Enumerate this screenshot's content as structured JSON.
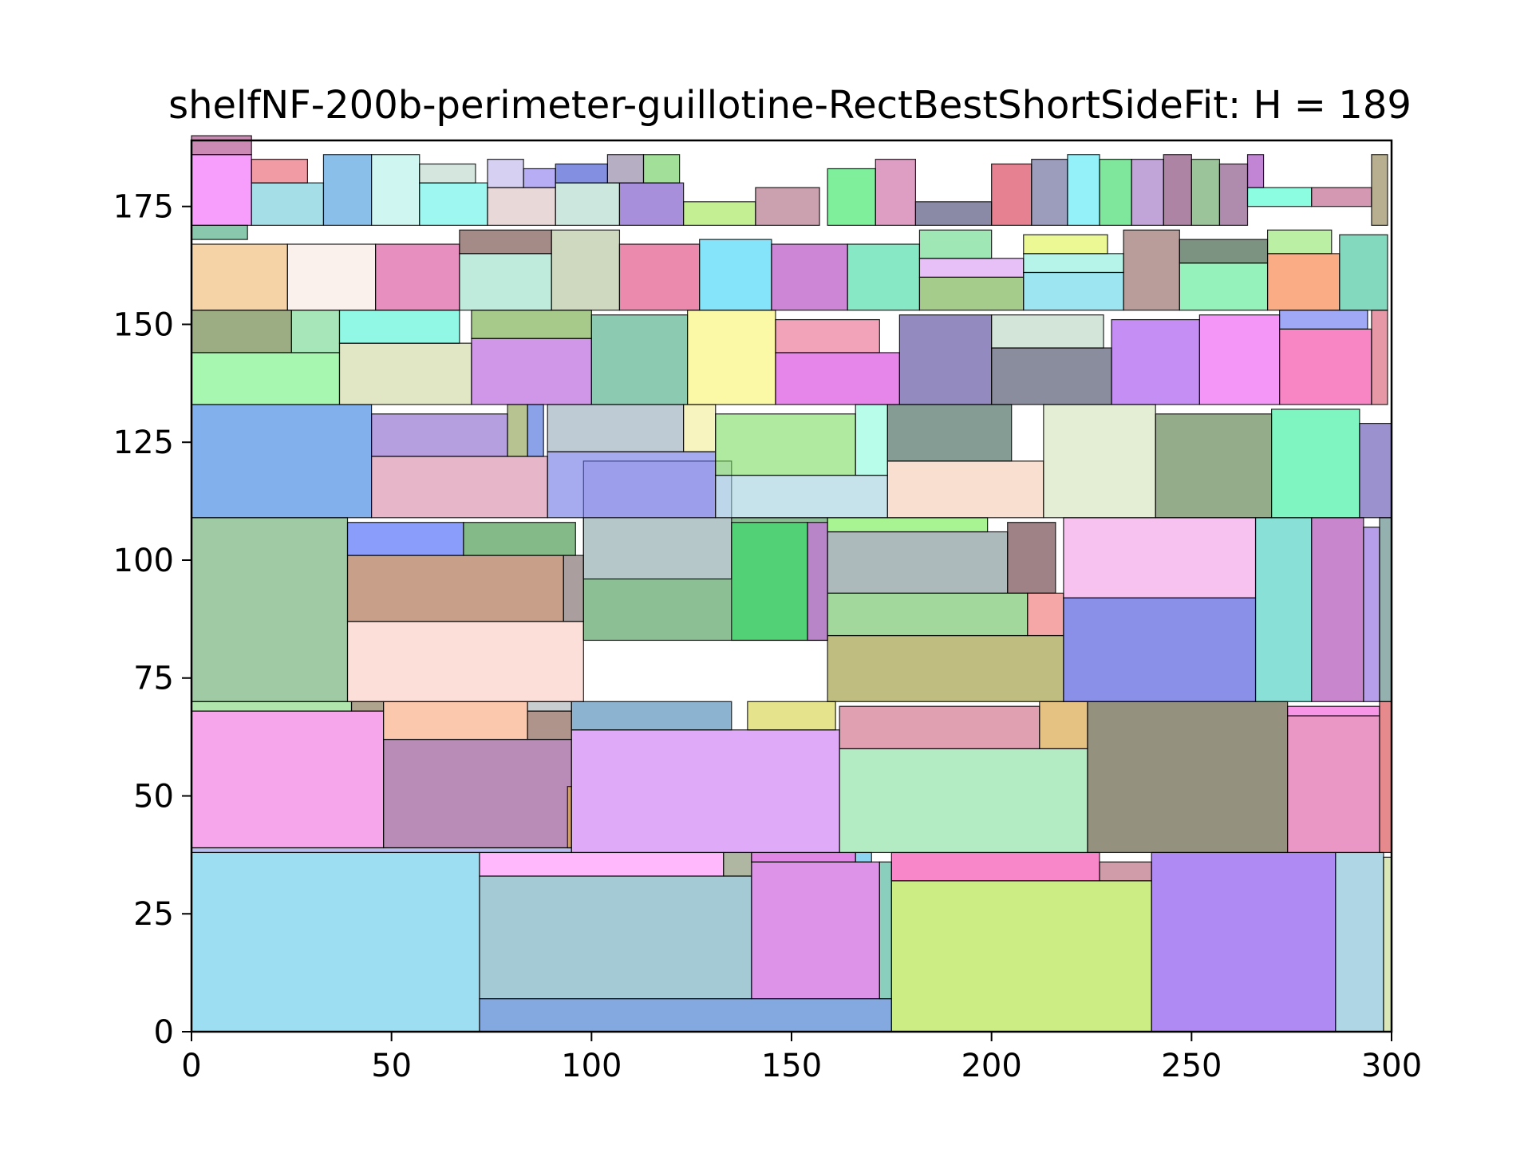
{
  "chart_data": {
    "type": "rectangle-packing",
    "title": "shelfNF-200b-perimeter-guillotine-RectBestShortSideFit: H = 189",
    "xlim": [
      0,
      300
    ],
    "ylim": [
      0,
      189
    ],
    "xticks": [
      "0",
      "50",
      "100",
      "150",
      "200",
      "250",
      "300"
    ],
    "yticks": [
      "0",
      "25",
      "50",
      "75",
      "100",
      "125",
      "150",
      "175"
    ],
    "grid": false,
    "rects": [
      {
        "x": 0,
        "y": 0,
        "w": 72,
        "h": 38,
        "color": "#4ec3e8"
      },
      {
        "x": 72,
        "y": 0,
        "w": 103,
        "h": 7,
        "color": "#1f62c9"
      },
      {
        "x": 72,
        "y": 7,
        "w": 68,
        "h": 26,
        "color": "#5aa1b3"
      },
      {
        "x": 140,
        "y": 7,
        "w": 32,
        "h": 29,
        "color": "#c13ad6"
      },
      {
        "x": 172,
        "y": 7,
        "w": 3,
        "h": 29,
        "color": "#2aa889"
      },
      {
        "x": 72,
        "y": 33,
        "w": 61,
        "h": 5,
        "color": "#ff7df9"
      },
      {
        "x": 133,
        "y": 33,
        "w": 7,
        "h": 5,
        "color": "#6e7a56"
      },
      {
        "x": 140,
        "y": 36,
        "w": 26,
        "h": 2,
        "color": "#c624d1"
      },
      {
        "x": 166,
        "y": 36,
        "w": 4,
        "h": 2,
        "color": "#2eb0e6"
      },
      {
        "x": 175,
        "y": 0,
        "w": 65,
        "h": 32,
        "color": "#a3df1f"
      },
      {
        "x": 175,
        "y": 32,
        "w": 52,
        "h": 6,
        "color": "#f0249a"
      },
      {
        "x": 227,
        "y": 32,
        "w": 13,
        "h": 4,
        "color": "#a94b63"
      },
      {
        "x": 240,
        "y": 0,
        "w": 46,
        "h": 38,
        "color": "#6d2ae8"
      },
      {
        "x": 286,
        "y": 0,
        "w": 12,
        "h": 38,
        "color": "#6eb4cf"
      },
      {
        "x": 298,
        "y": 0,
        "w": 2,
        "h": 37,
        "color": "#b9d57a"
      },
      {
        "x": 0,
        "y": 38,
        "w": 95,
        "h": 1,
        "color": "#7d8be2"
      },
      {
        "x": 0,
        "y": 39,
        "w": 48,
        "h": 29,
        "color": "#ee5cd8"
      },
      {
        "x": 48,
        "y": 39,
        "w": 47,
        "h": 23,
        "color": "#7f2c7c"
      },
      {
        "x": 0,
        "y": 68,
        "w": 40,
        "h": 2,
        "color": "#6fd26c"
      },
      {
        "x": 40,
        "y": 68,
        "w": 8,
        "h": 2,
        "color": "#6d5a32"
      },
      {
        "x": 48,
        "y": 62,
        "w": 36,
        "h": 8,
        "color": "#f79a6a"
      },
      {
        "x": 84,
        "y": 62,
        "w": 11,
        "h": 6,
        "color": "#6c3d2a"
      },
      {
        "x": 84,
        "y": 68,
        "w": 11,
        "h": 2,
        "color": "#9aa6a8"
      },
      {
        "x": 94,
        "y": 39,
        "w": 1,
        "h": 13,
        "color": "#e0ae25"
      },
      {
        "x": 95,
        "y": 38,
        "w": 67,
        "h": 26,
        "color": "#c564f0"
      },
      {
        "x": 95,
        "y": 64,
        "w": 40,
        "h": 6,
        "color": "#2d74a8"
      },
      {
        "x": 139,
        "y": 64,
        "w": 22,
        "h": 6,
        "color": "#cfcd30"
      },
      {
        "x": 162,
        "y": 38,
        "w": 62,
        "h": 22,
        "color": "#74dc92"
      },
      {
        "x": 162,
        "y": 60,
        "w": 50,
        "h": 9,
        "color": "#c65271"
      },
      {
        "x": 212,
        "y": 60,
        "w": 12,
        "h": 10,
        "color": "#cf8f1a"
      },
      {
        "x": 224,
        "y": 38,
        "w": 50,
        "h": 32,
        "color": "#3c3615"
      },
      {
        "x": 274,
        "y": 38,
        "w": 23,
        "h": 29,
        "color": "#db4195"
      },
      {
        "x": 274,
        "y": 67,
        "w": 23,
        "h": 2,
        "color": "#f040d3"
      },
      {
        "x": 297,
        "y": 38,
        "w": 3,
        "h": 32,
        "color": "#d32a32"
      },
      {
        "x": 0,
        "y": 70,
        "w": 39,
        "h": 39,
        "color": "#529e5a"
      },
      {
        "x": 39,
        "y": 70,
        "w": 59,
        "h": 17,
        "color": "#fbc4bb"
      },
      {
        "x": 39,
        "y": 87,
        "w": 54,
        "h": 14,
        "color": "#9a522a"
      },
      {
        "x": 39,
        "y": 101,
        "w": 29,
        "h": 7,
        "color": "#2b4cf7"
      },
      {
        "x": 68,
        "y": 101,
        "w": 28,
        "h": 7,
        "color": "#1f7f27"
      },
      {
        "x": 93,
        "y": 87,
        "w": 5,
        "h": 14,
        "color": "#64514f"
      },
      {
        "x": 98,
        "y": 83,
        "w": 61,
        "h": 26,
        "color": "#2e8c3c"
      },
      {
        "x": 98,
        "y": 96,
        "w": 37,
        "h": 25,
        "color": "#d8ccf5"
      },
      {
        "x": 135,
        "y": 83,
        "w": 19,
        "h": 25,
        "color": "#22df5e"
      },
      {
        "x": 154,
        "y": 83,
        "w": 5,
        "h": 25,
        "color": "#df54f4"
      },
      {
        "x": 159,
        "y": 70,
        "w": 59,
        "h": 14,
        "color": "#8a8618"
      },
      {
        "x": 159,
        "y": 84,
        "w": 50,
        "h": 9,
        "color": "#58b84c"
      },
      {
        "x": 159,
        "y": 93,
        "w": 45,
        "h": 13,
        "color": "#698283"
      },
      {
        "x": 159,
        "y": 106,
        "w": 40,
        "h": 3,
        "color": "#60eb3b"
      },
      {
        "x": 204,
        "y": 93,
        "w": 12,
        "h": 15,
        "color": "#4e1b22"
      },
      {
        "x": 209,
        "y": 84,
        "w": 9,
        "h": 9,
        "color": "#ec5e5e"
      },
      {
        "x": 218,
        "y": 70,
        "w": 48,
        "h": 22,
        "color": "#2935d4"
      },
      {
        "x": 218,
        "y": 92,
        "w": 48,
        "h": 17,
        "color": "#f08fe2"
      },
      {
        "x": 266,
        "y": 70,
        "w": 14,
        "h": 39,
        "color": "#26c6b6"
      },
      {
        "x": 280,
        "y": 70,
        "w": 13,
        "h": 39,
        "color": "#9a22a3"
      },
      {
        "x": 293,
        "y": 70,
        "w": 4,
        "h": 37,
        "color": "#7b4fd8"
      },
      {
        "x": 297,
        "y": 70,
        "w": 3,
        "h": 39,
        "color": "#3d6f6e"
      },
      {
        "x": 0,
        "y": 109,
        "w": 45,
        "h": 24,
        "color": "#1b6fdd"
      },
      {
        "x": 45,
        "y": 109,
        "w": 44,
        "h": 13,
        "color": "#d37a9c"
      },
      {
        "x": 45,
        "y": 122,
        "w": 34,
        "h": 9,
        "color": "#7a50c4"
      },
      {
        "x": 79,
        "y": 122,
        "w": 5,
        "h": 11,
        "color": "#7b9234"
      },
      {
        "x": 84,
        "y": 122,
        "w": 4,
        "h": 11,
        "color": "#2b55d6"
      },
      {
        "x": 89,
        "y": 109,
        "w": 42,
        "h": 14,
        "color": "#5b66e0"
      },
      {
        "x": 89,
        "y": 123,
        "w": 34,
        "h": 10,
        "color": "#8aa0b0"
      },
      {
        "x": 123,
        "y": 123,
        "w": 8,
        "h": 10,
        "color": "#f0eb8a"
      },
      {
        "x": 131,
        "y": 109,
        "w": 43,
        "h": 9,
        "color": "#97ccdc"
      },
      {
        "x": 131,
        "y": 118,
        "w": 35,
        "h": 13,
        "color": "#70d954"
      },
      {
        "x": 166,
        "y": 118,
        "w": 8,
        "h": 15,
        "color": "#7dfcd9"
      },
      {
        "x": 174,
        "y": 109,
        "w": 39,
        "h": 12,
        "color": "#f3c5a8"
      },
      {
        "x": 174,
        "y": 121,
        "w": 31,
        "h": 12,
        "color": "#1f4b3b"
      },
      {
        "x": 213,
        "y": 109,
        "w": 28,
        "h": 24,
        "color": "#cde0b0"
      },
      {
        "x": 241,
        "y": 109,
        "w": 29,
        "h": 22,
        "color": "#3d682a"
      },
      {
        "x": 270,
        "y": 109,
        "w": 22,
        "h": 23,
        "color": "#15ef8f"
      },
      {
        "x": 292,
        "y": 109,
        "w": 8,
        "h": 20,
        "color": "#4b36a8"
      },
      {
        "x": 0,
        "y": 133,
        "w": 37,
        "h": 11,
        "color": "#5ef070"
      },
      {
        "x": 0,
        "y": 144,
        "w": 25,
        "h": 9,
        "color": "#4c6a1e"
      },
      {
        "x": 25,
        "y": 144,
        "w": 12,
        "h": 9,
        "color": "#5fd27e"
      },
      {
        "x": 37,
        "y": 133,
        "w": 33,
        "h": 13,
        "color": "#c9d193"
      },
      {
        "x": 37,
        "y": 146,
        "w": 30,
        "h": 7,
        "color": "#35f3ce"
      },
      {
        "x": 70,
        "y": 133,
        "w": 30,
        "h": 14,
        "color": "#aa3fd5"
      },
      {
        "x": 70,
        "y": 147,
        "w": 30,
        "h": 6,
        "color": "#5e9d28"
      },
      {
        "x": 100,
        "y": 133,
        "w": 24,
        "h": 19,
        "color": "#2e9f73"
      },
      {
        "x": 124,
        "y": 133,
        "w": 22,
        "h": 20,
        "color": "#f7f45c"
      },
      {
        "x": 146,
        "y": 133,
        "w": 31,
        "h": 11,
        "color": "#d423d9"
      },
      {
        "x": 146,
        "y": 144,
        "w": 26,
        "h": 7,
        "color": "#ea577f"
      },
      {
        "x": 177,
        "y": 133,
        "w": 23,
        "h": 19,
        "color": "#3a2b8a"
      },
      {
        "x": 200,
        "y": 133,
        "w": 30,
        "h": 12,
        "color": "#28304d"
      },
      {
        "x": 200,
        "y": 145,
        "w": 28,
        "h": 7,
        "color": "#afcdb8"
      },
      {
        "x": 230,
        "y": 133,
        "w": 22,
        "h": 18,
        "color": "#9532eb"
      },
      {
        "x": 252,
        "y": 133,
        "w": 20,
        "h": 19,
        "color": "#eb3ff1"
      },
      {
        "x": 272,
        "y": 133,
        "w": 23,
        "h": 16,
        "color": "#f22393"
      },
      {
        "x": 272,
        "y": 149,
        "w": 22,
        "h": 4,
        "color": "#5062ec"
      },
      {
        "x": 295,
        "y": 133,
        "w": 4,
        "h": 20,
        "color": "#d2445f"
      },
      {
        "x": 0,
        "y": 153,
        "w": 24,
        "h": 14,
        "color": "#efaf5c"
      },
      {
        "x": 24,
        "y": 153,
        "w": 22,
        "h": 14,
        "color": "#f5e3dc"
      },
      {
        "x": 46,
        "y": 153,
        "w": 21,
        "h": 14,
        "color": "#d3358c"
      },
      {
        "x": 67,
        "y": 153,
        "w": 23,
        "h": 12,
        "color": "#8bdbc1"
      },
      {
        "x": 67,
        "y": 165,
        "w": 23,
        "h": 5,
        "color": "#5a2c26"
      },
      {
        "x": 90,
        "y": 153,
        "w": 17,
        "h": 17,
        "color": "#a5b98a"
      },
      {
        "x": 107,
        "y": 153,
        "w": 20,
        "h": 14,
        "color": "#dc2a6b"
      },
      {
        "x": 127,
        "y": 153,
        "w": 18,
        "h": 15,
        "color": "#21cdf6"
      },
      {
        "x": 145,
        "y": 153,
        "w": 19,
        "h": 14,
        "color": "#a323b2"
      },
      {
        "x": 164,
        "y": 153,
        "w": 18,
        "h": 14,
        "color": "#25d596"
      },
      {
        "x": 182,
        "y": 153,
        "w": 26,
        "h": 7,
        "color": "#5ba32c"
      },
      {
        "x": 182,
        "y": 160,
        "w": 26,
        "h": 4,
        "color": "#d68cf2"
      },
      {
        "x": 182,
        "y": 164,
        "w": 18,
        "h": 6,
        "color": "#50d57a"
      },
      {
        "x": 208,
        "y": 153,
        "w": 25,
        "h": 8,
        "color": "#4acfe6"
      },
      {
        "x": 208,
        "y": 161,
        "w": 25,
        "h": 4,
        "color": "#7ae9d6"
      },
      {
        "x": 208,
        "y": 165,
        "w": 21,
        "h": 4,
        "color": "#dcf23a"
      },
      {
        "x": 233,
        "y": 153,
        "w": 14,
        "h": 17,
        "color": "#7e4c48"
      },
      {
        "x": 247,
        "y": 153,
        "w": 22,
        "h": 10,
        "color": "#3ee884"
      },
      {
        "x": 247,
        "y": 163,
        "w": 22,
        "h": 5,
        "color": "#133a19"
      },
      {
        "x": 269,
        "y": 153,
        "w": 18,
        "h": 12,
        "color": "#f56a1f"
      },
      {
        "x": 269,
        "y": 165,
        "w": 16,
        "h": 5,
        "color": "#83e45a"
      },
      {
        "x": 287,
        "y": 153,
        "w": 12,
        "h": 16,
        "color": "#1cb986"
      },
      {
        "x": 0,
        "y": 171,
        "w": 15,
        "h": 15,
        "color": "#f04cfa"
      },
      {
        "x": 0,
        "y": 186,
        "w": 15,
        "h": 4,
        "color": "#a12a77"
      },
      {
        "x": 15,
        "y": 171,
        "w": 18,
        "h": 9,
        "color": "#5cc2d4"
      },
      {
        "x": 15,
        "y": 180,
        "w": 14,
        "h": 5,
        "color": "#e64a5b"
      },
      {
        "x": 33,
        "y": 171,
        "w": 12,
        "h": 15,
        "color": "#2a8ad8"
      },
      {
        "x": 45,
        "y": 171,
        "w": 12,
        "h": 15,
        "color": "#a9efe6"
      },
      {
        "x": 57,
        "y": 171,
        "w": 17,
        "h": 9,
        "color": "#4ff0e3"
      },
      {
        "x": 57,
        "y": 180,
        "w": 14,
        "h": 4,
        "color": "#b1d2c2"
      },
      {
        "x": 74,
        "y": 171,
        "w": 17,
        "h": 8,
        "color": "#d6b8b8"
      },
      {
        "x": 74,
        "y": 179,
        "w": 9,
        "h": 6,
        "color": "#b5a9e8"
      },
      {
        "x": 83,
        "y": 179,
        "w": 8,
        "h": 4,
        "color": "#7b69ec"
      },
      {
        "x": 91,
        "y": 171,
        "w": 16,
        "h": 9,
        "color": "#a2d4c2"
      },
      {
        "x": 91,
        "y": 180,
        "w": 13,
        "h": 4,
        "color": "#1d34c9"
      },
      {
        "x": 107,
        "y": 171,
        "w": 16,
        "h": 9,
        "color": "#6033bd"
      },
      {
        "x": 104,
        "y": 180,
        "w": 9,
        "h": 6,
        "color": "#7a6c92"
      },
      {
        "x": 113,
        "y": 180,
        "w": 9,
        "h": 6,
        "color": "#55c444"
      },
      {
        "x": 123,
        "y": 171,
        "w": 18,
        "h": 5,
        "color": "#95e23b"
      },
      {
        "x": 141,
        "y": 171,
        "w": 16,
        "h": 8,
        "color": "#a3546d"
      },
      {
        "x": 159,
        "y": 171,
        "w": 12,
        "h": 12,
        "color": "#16e24a"
      },
      {
        "x": 171,
        "y": 171,
        "w": 10,
        "h": 14,
        "color": "#c34c92"
      },
      {
        "x": 181,
        "y": 171,
        "w": 19,
        "h": 5,
        "color": "#2a2a5e"
      },
      {
        "x": 200,
        "y": 171,
        "w": 10,
        "h": 13,
        "color": "#cf1a37"
      },
      {
        "x": 210,
        "y": 171,
        "w": 9,
        "h": 14,
        "color": "#4b4a86"
      },
      {
        "x": 219,
        "y": 171,
        "w": 8,
        "h": 15,
        "color": "#3ee5f4"
      },
      {
        "x": 227,
        "y": 171,
        "w": 8,
        "h": 14,
        "color": "#15d44a"
      },
      {
        "x": 235,
        "y": 171,
        "w": 8,
        "h": 14,
        "color": "#8e5bb9"
      },
      {
        "x": 243,
        "y": 171,
        "w": 7,
        "h": 15,
        "color": "#6c1f59"
      },
      {
        "x": 250,
        "y": 171,
        "w": 7,
        "h": 14,
        "color": "#4a9348"
      },
      {
        "x": 257,
        "y": 171,
        "w": 7,
        "h": 13,
        "color": "#6e2d6a"
      },
      {
        "x": 264,
        "y": 175,
        "w": 16,
        "h": 4,
        "color": "#2efcc9"
      },
      {
        "x": 280,
        "y": 175,
        "w": 15,
        "h": 4,
        "color": "#b34475"
      },
      {
        "x": 264,
        "y": 179,
        "w": 4,
        "h": 7,
        "color": "#8f21b4"
      },
      {
        "x": 295,
        "y": 171,
        "w": 4,
        "h": 15,
        "color": "#7c6d33"
      },
      {
        "x": 0,
        "y": 168,
        "w": 14,
        "h": 3,
        "color": "#2a9a6a"
      }
    ]
  }
}
